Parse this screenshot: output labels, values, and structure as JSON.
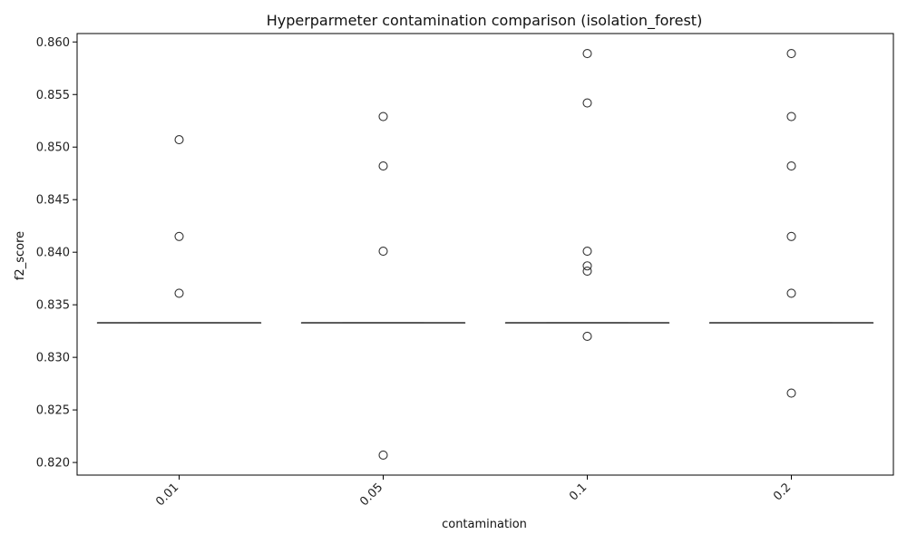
{
  "chart_data": {
    "type": "boxplot",
    "title": "Hyperparmeter contamination comparison (isolation_forest)",
    "xlabel": "contamination",
    "ylabel": "f2_score",
    "categories": [
      "0.01",
      "0.05",
      "0.1",
      "0.2"
    ],
    "ylim": [
      0.8188,
      0.8608
    ],
    "yticks": [
      0.82,
      0.825,
      0.83,
      0.835,
      0.84,
      0.845,
      0.85,
      0.855,
      0.86
    ],
    "ytick_labels": [
      "0.820",
      "0.825",
      "0.830",
      "0.835",
      "0.840",
      "0.845",
      "0.850",
      "0.855",
      "0.860"
    ],
    "boxes": [
      {
        "category": "0.01",
        "q1": 0.8333,
        "median": 0.8333,
        "q3": 0.8333,
        "whisker_low": 0.8333,
        "whisker_high": 0.8333,
        "outliers": [
          0.8507,
          0.8415,
          0.8361
        ]
      },
      {
        "category": "0.05",
        "q1": 0.8333,
        "median": 0.8333,
        "q3": 0.8333,
        "whisker_low": 0.8333,
        "whisker_high": 0.8333,
        "outliers": [
          0.8529,
          0.8482,
          0.8401,
          0.8207
        ]
      },
      {
        "category": "0.1",
        "q1": 0.8333,
        "median": 0.8333,
        "q3": 0.8333,
        "whisker_low": 0.8333,
        "whisker_high": 0.8333,
        "outliers": [
          0.8589,
          0.8542,
          0.8401,
          0.8387,
          0.8382,
          0.832
        ]
      },
      {
        "category": "0.2",
        "q1": 0.8333,
        "median": 0.8333,
        "q3": 0.8333,
        "whisker_low": 0.8333,
        "whisker_high": 0.8333,
        "outliers": [
          0.8589,
          0.8529,
          0.8482,
          0.8415,
          0.8361,
          0.8266
        ]
      }
    ],
    "grid": false,
    "colors": {
      "box": "#555555",
      "outlier_edge": "#333333",
      "axis": "#000000"
    }
  }
}
